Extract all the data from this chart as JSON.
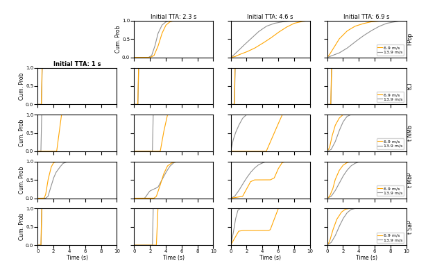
{
  "col_titles": [
    "Initial TTA: 2.3 s",
    "Initial TTA: 4.6 s",
    "Initial TTA: 6.9 s"
  ],
  "row_labels": [
    "FPop",
    "tCI",
    "t NMb",
    "t MbP",
    "t SaP"
  ],
  "row1_label": "Initial TTA: 1 s",
  "speed_fast": "6.9 m/s",
  "speed_slow": "13.9 m/s",
  "color_fast": "#FFA500",
  "color_slow": "#909090",
  "xlim": [
    0,
    10
  ],
  "ylim": [
    0.0,
    1.0
  ],
  "xlabel": "Time (s)",
  "ylabel": "Cum. Prob",
  "linewidth": 0.8,
  "tick_fontsize": 5.0,
  "label_fontsize": 5.5,
  "legend_fontsize": 4.5,
  "row_label_fontsize": 5.5,
  "title_fontsize": 6.0
}
